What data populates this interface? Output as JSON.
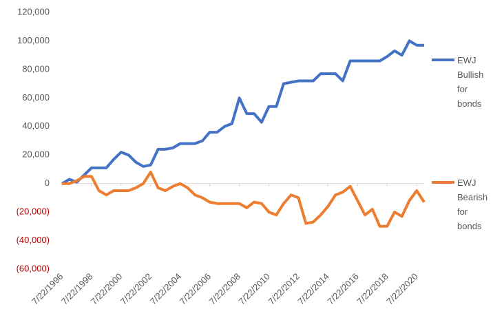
{
  "chart_data": {
    "type": "line",
    "x": [
      "7/22/1996",
      "1/22/1997",
      "7/22/1997",
      "1/22/1998",
      "7/22/1998",
      "1/22/1999",
      "7/22/1999",
      "1/22/2000",
      "7/22/2000",
      "1/22/2001",
      "7/22/2001",
      "1/22/2002",
      "7/22/2002",
      "1/22/2003",
      "7/22/2003",
      "1/22/2004",
      "7/22/2004",
      "1/22/2005",
      "7/22/2005",
      "1/22/2006",
      "7/22/2006",
      "1/22/2007",
      "7/22/2007",
      "1/22/2008",
      "7/22/2008",
      "1/22/2009",
      "7/22/2009",
      "1/22/2010",
      "7/22/2010",
      "1/22/2011",
      "7/22/2011",
      "1/22/2012",
      "7/22/2012",
      "1/22/2013",
      "7/22/2013",
      "1/22/2014",
      "7/22/2014",
      "1/22/2015",
      "7/22/2015",
      "1/22/2016",
      "7/22/2016",
      "1/22/2017",
      "7/22/2017",
      "1/22/2018",
      "7/22/2018",
      "1/22/2019",
      "7/22/2019",
      "1/22/2020",
      "7/22/2020",
      "1/22/2021"
    ],
    "series": [
      {
        "name": "EWJ Bullish for bonds",
        "color": "#4472c4",
        "values": [
          0,
          3000,
          1000,
          6000,
          11000,
          11000,
          11000,
          17000,
          22000,
          20000,
          15000,
          12000,
          13000,
          24000,
          24000,
          25000,
          28000,
          28000,
          28000,
          30000,
          36000,
          36000,
          40000,
          42000,
          60000,
          49000,
          49000,
          43000,
          54000,
          54000,
          70000,
          71000,
          72000,
          72000,
          72000,
          77000,
          77000,
          77000,
          72000,
          86000,
          86000,
          86000,
          86000,
          86000,
          89000,
          93000,
          90000,
          100000,
          97000,
          97000
        ]
      },
      {
        "name": "EWJ Bearish for bonds",
        "color": "#ed7d31",
        "values": [
          0,
          0,
          2000,
          5000,
          5000,
          -5000,
          -8000,
          -5000,
          -5000,
          -5000,
          -3000,
          0,
          8000,
          -3000,
          -5000,
          -2000,
          0,
          -3000,
          -8000,
          -10000,
          -13000,
          -14000,
          -14000,
          -14000,
          -14000,
          -17000,
          -13000,
          -14000,
          -20000,
          -22000,
          -14000,
          -8000,
          -10000,
          -28000,
          -27000,
          -22000,
          -16000,
          -8000,
          -6000,
          -2000,
          -12000,
          -22000,
          -18000,
          -30000,
          -30000,
          -20000,
          -23000,
          -12000,
          -5000,
          -13000
        ]
      }
    ],
    "xlim": [
      "7/22/1996",
      "1/22/2021"
    ],
    "xticks": [
      "7/22/1996",
      "7/22/1998",
      "7/22/2000",
      "7/22/2002",
      "7/22/2004",
      "7/22/2006",
      "7/22/2008",
      "7/22/2010",
      "7/22/2012",
      "7/22/2014",
      "7/22/2016",
      "7/22/2018",
      "7/22/2020"
    ],
    "ylim": [
      -60000,
      120000
    ],
    "yticks": [
      {
        "value": -60000,
        "label": "(60,000)"
      },
      {
        "value": -40000,
        "label": "(40,000)"
      },
      {
        "value": -20000,
        "label": "(20,000)"
      },
      0,
      {
        "value": 20000,
        "label": "20,000"
      },
      {
        "value": 40000,
        "label": "40,000"
      },
      {
        "value": 60000,
        "label": "60,000"
      },
      {
        "value": 80000,
        "label": "80,000"
      },
      {
        "value": 100000,
        "label": "100,000"
      },
      {
        "value": 120000,
        "label": "120,000"
      }
    ],
    "negative_tick_color": "#c00000",
    "legend": "right"
  }
}
